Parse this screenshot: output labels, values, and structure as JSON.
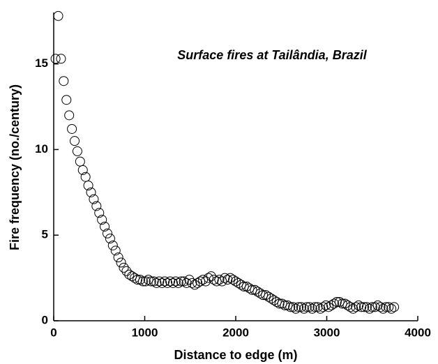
{
  "chart_data": {
    "type": "scatter",
    "annotation": "Surface fires at Tailândia, Brazil",
    "xlabel": "Distance to edge (m)",
    "ylabel": "Fire frequency (no./century)",
    "color": "#000000",
    "xlim": [
      0,
      4000
    ],
    "xticks": [
      0,
      1000,
      2000,
      3000,
      4000
    ],
    "ylim": [
      0,
      18
    ],
    "yticks": [
      0,
      5,
      10,
      15
    ],
    "x": [
      20,
      50,
      80,
      110,
      140,
      170,
      200,
      230,
      260,
      290,
      320,
      350,
      380,
      410,
      440,
      470,
      500,
      530,
      560,
      590,
      620,
      650,
      680,
      710,
      740,
      770,
      800,
      830,
      860,
      890,
      920,
      950,
      980,
      1010,
      1040,
      1070,
      1100,
      1130,
      1160,
      1190,
      1220,
      1250,
      1280,
      1310,
      1340,
      1370,
      1400,
      1430,
      1460,
      1490,
      1520,
      1550,
      1580,
      1610,
      1640,
      1670,
      1700,
      1730,
      1760,
      1790,
      1820,
      1850,
      1880,
      1910,
      1940,
      1970,
      2000,
      2030,
      2060,
      2090,
      2120,
      2150,
      2180,
      2210,
      2240,
      2270,
      2300,
      2330,
      2360,
      2390,
      2420,
      2450,
      2480,
      2510,
      2540,
      2570,
      2600,
      2630,
      2660,
      2690,
      2720,
      2750,
      2780,
      2810,
      2840,
      2870,
      2900,
      2930,
      2960,
      2990,
      3020,
      3050,
      3080,
      3110,
      3140,
      3170,
      3200,
      3230,
      3260,
      3290,
      3320,
      3350,
      3380,
      3410,
      3440,
      3470,
      3500,
      3530,
      3560,
      3590,
      3620,
      3650,
      3680,
      3710,
      3740
    ],
    "values": [
      15.3,
      17.8,
      15.3,
      14.0,
      12.9,
      12.0,
      11.2,
      10.5,
      9.9,
      9.3,
      8.8,
      8.4,
      7.9,
      7.5,
      7.1,
      6.7,
      6.3,
      5.9,
      5.5,
      5.1,
      4.8,
      4.4,
      4.1,
      3.7,
      3.4,
      3.1,
      2.9,
      2.7,
      2.6,
      2.5,
      2.4,
      2.4,
      2.3,
      2.3,
      2.4,
      2.3,
      2.3,
      2.2,
      2.3,
      2.2,
      2.3,
      2.2,
      2.3,
      2.2,
      2.3,
      2.2,
      2.3,
      2.3,
      2.2,
      2.4,
      2.2,
      2.1,
      2.2,
      2.3,
      2.4,
      2.3,
      2.5,
      2.6,
      2.4,
      2.3,
      2.4,
      2.3,
      2.5,
      2.4,
      2.5,
      2.4,
      2.3,
      2.2,
      2.1,
      2.0,
      2.0,
      1.9,
      1.8,
      1.8,
      1.7,
      1.6,
      1.5,
      1.5,
      1.4,
      1.3,
      1.2,
      1.1,
      1.0,
      1.0,
      0.9,
      0.9,
      0.8,
      0.8,
      0.7,
      0.8,
      0.8,
      0.7,
      0.8,
      0.8,
      0.7,
      0.8,
      0.8,
      0.7,
      0.8,
      0.9,
      0.8,
      0.9,
      1.0,
      1.1,
      1.1,
      1.0,
      1.0,
      0.9,
      0.8,
      0.7,
      0.8,
      0.9,
      0.8,
      0.8,
      0.8,
      0.7,
      0.8,
      0.8,
      0.9,
      0.8,
      0.7,
      0.8,
      0.8,
      0.7,
      0.8
    ]
  }
}
